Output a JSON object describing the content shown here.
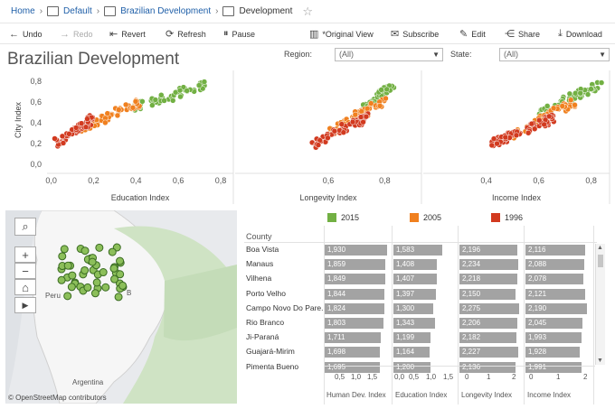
{
  "breadcrumb": {
    "home": "Home",
    "folder": "Default",
    "workbook": "Brazilian Development",
    "view": "Development"
  },
  "toolbar": {
    "undo": "Undo",
    "redo": "Redo",
    "revert": "Revert",
    "refresh": "Refresh",
    "pause": "Pause",
    "original_view": "*Original View",
    "subscribe": "Subscribe",
    "edit": "Edit",
    "share": "Share",
    "download": "Download"
  },
  "title": "Brazilian Development",
  "filters": {
    "region_label": "Region:",
    "region_value": "(All)",
    "state_label": "State:",
    "state_value": "(All)"
  },
  "colors": {
    "y2015": "#72b043",
    "y2005": "#f0801f",
    "y1996": "#d23a1f",
    "bar": "#a3a3a3",
    "link": "#1f5fa8"
  },
  "chart_data": {
    "type": "scatter",
    "ylabel": "City Index",
    "yticks": [
      "0,0",
      "0,2",
      "0,4",
      "0,6",
      "0,8"
    ],
    "ylim": [
      0,
      0.85
    ],
    "legend": [
      "2015",
      "2005",
      "1996"
    ],
    "panels": [
      {
        "xlabel": "Education Index",
        "xticks": [
          "0,0",
          "0,2",
          "0,4",
          "0,6",
          "0,8"
        ],
        "xlim": [
          -0.02,
          0.86
        ],
        "clusters": [
          {
            "series": "1996",
            "x": [
              0.02,
              0.2
            ],
            "y": [
              0.2,
              0.44
            ]
          },
          {
            "series": "2005",
            "x": [
              0.14,
              0.42
            ],
            "y": [
              0.34,
              0.6
            ]
          },
          {
            "series": "2015",
            "x": [
              0.4,
              0.74
            ],
            "y": [
              0.54,
              0.78
            ]
          }
        ]
      },
      {
        "xlabel": "Longevity Index",
        "xticks": [
          "0,6",
          "0,8"
        ],
        "xlim": [
          0.27,
          0.93
        ],
        "clusters": [
          {
            "series": "1996",
            "x": [
              0.55,
              0.74
            ],
            "y": [
              0.2,
              0.46
            ]
          },
          {
            "series": "2005",
            "x": [
              0.6,
              0.8
            ],
            "y": [
              0.3,
              0.62
            ]
          },
          {
            "series": "2015",
            "x": [
              0.72,
              0.83
            ],
            "y": [
              0.52,
              0.76
            ]
          }
        ]
      },
      {
        "xlabel": "Income Index",
        "xticks": [
          "0,4",
          "0,6",
          "0,8"
        ],
        "xlim": [
          0.16,
          0.87
        ],
        "clusters": [
          {
            "series": "1996",
            "x": [
              0.42,
              0.66
            ],
            "y": [
              0.2,
              0.45
            ]
          },
          {
            "series": "2005",
            "x": [
              0.5,
              0.74
            ],
            "y": [
              0.28,
              0.6
            ]
          },
          {
            "series": "2015",
            "x": [
              0.6,
              0.84
            ],
            "y": [
              0.48,
              0.78
            ]
          }
        ]
      }
    ]
  },
  "map": {
    "labels": {
      "peru": "Peru",
      "argentina": "Argentina",
      "b": "B"
    },
    "credit": "© OpenStreetMap contributors"
  },
  "table": {
    "header": "County",
    "rows": [
      {
        "county": "Boa Vista",
        "hdi": "1,930",
        "edu": "1,583",
        "lon": "2,196",
        "inc": "2,116"
      },
      {
        "county": "Manaus",
        "hdi": "1,859",
        "edu": "1,408",
        "lon": "2,234",
        "inc": "2,088"
      },
      {
        "county": "Vilhena",
        "hdi": "1,849",
        "edu": "1,407",
        "lon": "2,218",
        "inc": "2,078"
      },
      {
        "county": "Porto Velho",
        "hdi": "1,844",
        "edu": "1,397",
        "lon": "2,150",
        "inc": "2,121"
      },
      {
        "county": "Campo Novo Do Pare...",
        "hdi": "1,824",
        "edu": "1,300",
        "lon": "2,275",
        "inc": "2,190"
      },
      {
        "county": "Rio Branco",
        "hdi": "1,803",
        "edu": "1,343",
        "lon": "2,206",
        "inc": "2,045"
      },
      {
        "county": "Ji-Paraná",
        "hdi": "1,711",
        "edu": "1,199",
        "lon": "2,182",
        "inc": "1,993"
      },
      {
        "county": "Guajará-Mirim",
        "hdi": "1,698",
        "edu": "1,164",
        "lon": "2,227",
        "inc": "1,928"
      },
      {
        "county": "Pimenta Bueno",
        "hdi": "1,695",
        "edu": "1,200",
        "lon": "2,136",
        "inc": "1,991"
      }
    ],
    "columns": [
      {
        "title": "Human Dev. Index",
        "ticks": [
          "0,5",
          "1,0",
          "1,5"
        ]
      },
      {
        "title": "Education Index",
        "ticks": [
          "0,0",
          "0,5",
          "1,0",
          "1,5"
        ]
      },
      {
        "title": "Longevity Index",
        "ticks": [
          "0",
          "1",
          "2"
        ]
      },
      {
        "title": "Income Index",
        "ticks": [
          "0",
          "1",
          "2"
        ]
      }
    ]
  }
}
